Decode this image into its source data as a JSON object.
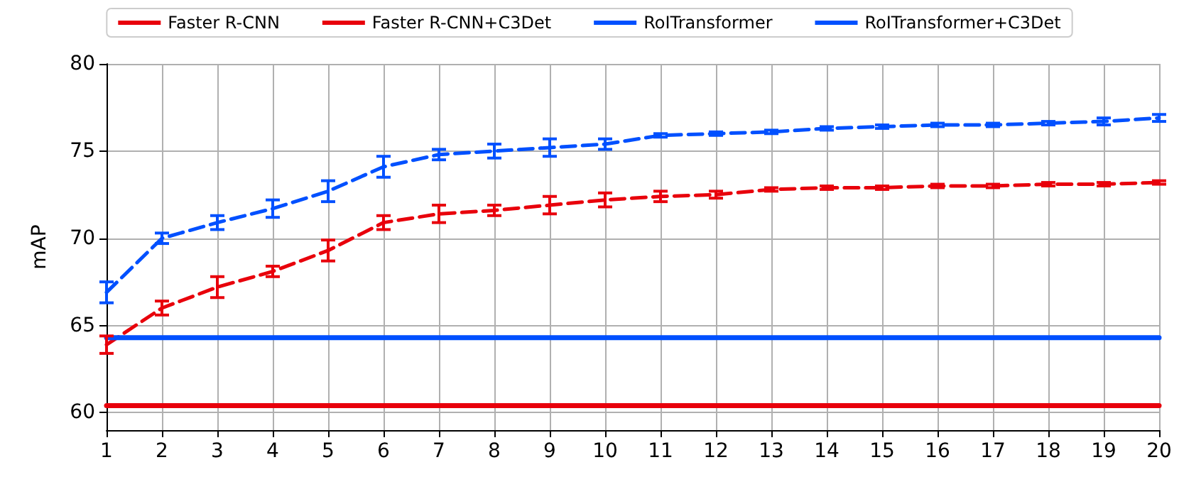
{
  "chart_data": {
    "type": "line",
    "ylabel": "mAP",
    "xlim": [
      1,
      20
    ],
    "xticks": [
      1,
      2,
      3,
      4,
      5,
      6,
      7,
      8,
      9,
      10,
      11,
      12,
      13,
      14,
      15,
      16,
      17,
      18,
      19,
      20
    ],
    "ylim": [
      59,
      80
    ],
    "yticks": [
      60,
      65,
      70,
      75,
      80
    ],
    "grid": true,
    "legend": "top",
    "marker": "none",
    "series": [
      {
        "name": "Faster R-CNN",
        "color": "#e8000b",
        "line_style": "solid",
        "x": [
          1,
          20
        ],
        "values": [
          60.4,
          60.4
        ]
      },
      {
        "name": "Faster R-CNN+C3Det",
        "color": "#e8000b",
        "line_style": "dashed",
        "x": [
          1,
          2,
          3,
          4,
          5,
          6,
          7,
          8,
          9,
          10,
          11,
          12,
          13,
          14,
          15,
          16,
          17,
          18,
          19,
          20
        ],
        "values": [
          63.9,
          66.0,
          67.2,
          68.1,
          69.3,
          70.9,
          71.4,
          71.6,
          71.9,
          72.2,
          72.4,
          72.5,
          72.8,
          72.9,
          72.9,
          73.0,
          73.0,
          73.1,
          73.1,
          73.2
        ],
        "errors": [
          0.5,
          0.4,
          0.6,
          0.3,
          0.6,
          0.4,
          0.5,
          0.3,
          0.5,
          0.4,
          0.3,
          0.2,
          0.1,
          0.1,
          0.1,
          0.1,
          0.1,
          0.1,
          0.1,
          0.1
        ]
      },
      {
        "name": "RoITransformer",
        "color": "#0050ff",
        "line_style": "solid",
        "x": [
          1,
          20
        ],
        "values": [
          64.3,
          64.3
        ]
      },
      {
        "name": "RoITransformer+C3Det",
        "color": "#0050ff",
        "line_style": "dashed",
        "x": [
          1,
          2,
          3,
          4,
          5,
          6,
          7,
          8,
          9,
          10,
          11,
          12,
          13,
          14,
          15,
          16,
          17,
          18,
          19,
          20
        ],
        "values": [
          66.9,
          70.0,
          70.9,
          71.7,
          72.7,
          74.1,
          74.8,
          75.0,
          75.2,
          75.4,
          75.9,
          76.0,
          76.1,
          76.3,
          76.4,
          76.5,
          76.5,
          76.6,
          76.7,
          76.9
        ],
        "errors": [
          0.6,
          0.3,
          0.4,
          0.5,
          0.6,
          0.6,
          0.3,
          0.4,
          0.5,
          0.3,
          0.1,
          0.1,
          0.1,
          0.1,
          0.1,
          0.1,
          0.1,
          0.1,
          0.2,
          0.2
        ]
      }
    ]
  }
}
